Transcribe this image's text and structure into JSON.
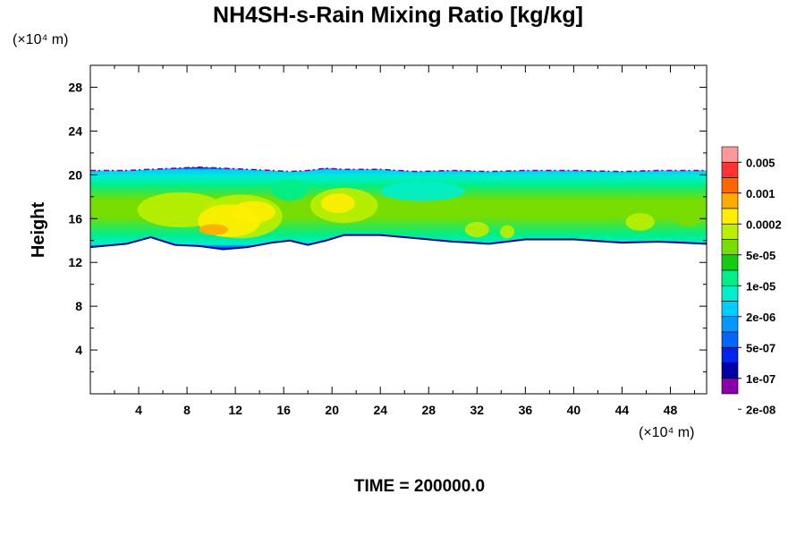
{
  "chart_data": {
    "type": "heatmap",
    "title": "NH4SH-s-Rain Mixing Ratio [kg/kg]",
    "xlabel": "",
    "ylabel": "Height",
    "x_unit": "(×10⁴ m)",
    "y_unit": "(×10⁴ m)",
    "xlim": [
      0,
      51
    ],
    "ylim": [
      0,
      30
    ],
    "x_ticks": [
      4,
      8,
      12,
      16,
      20,
      24,
      28,
      32,
      36,
      40,
      44,
      48
    ],
    "y_ticks": [
      4,
      8,
      12,
      16,
      20,
      24,
      28
    ],
    "footer": "TIME = 200000.0",
    "layer": {
      "x": [
        0,
        3,
        5,
        7,
        9,
        11,
        13,
        15,
        16.5,
        18,
        19.5,
        21,
        24,
        27,
        30,
        33,
        36,
        40,
        44,
        47,
        51
      ],
      "base": [
        13.4,
        13.7,
        14.3,
        13.6,
        13.5,
        13.2,
        13.4,
        13.8,
        14.0,
        13.6,
        14.0,
        14.5,
        14.5,
        14.2,
        13.9,
        13.7,
        14.1,
        14.1,
        13.8,
        13.9,
        13.7
      ],
      "top": [
        20.4,
        20.4,
        20.5,
        20.6,
        20.7,
        20.6,
        20.5,
        20.4,
        20.3,
        20.4,
        20.6,
        20.5,
        20.5,
        20.3,
        20.4,
        20.3,
        20.4,
        20.4,
        20.3,
        20.4,
        20.4
      ]
    },
    "colorbar": {
      "labels": [
        "0.005",
        "0.001",
        "0.0002",
        "5e-05",
        "1e-05",
        "2e-06",
        "5e-07",
        "1e-07",
        "2e-08"
      ],
      "colors": [
        "#ff9999",
        "#ff3333",
        "#ff6600",
        "#ffaa00",
        "#ffee00",
        "#bbee00",
        "#77dd00",
        "#11cc11",
        "#00ee88",
        "#00eecc",
        "#00ccff",
        "#0099ff",
        "#0066ff",
        "#0022ee",
        "#0000aa",
        "#8800aa"
      ]
    }
  }
}
